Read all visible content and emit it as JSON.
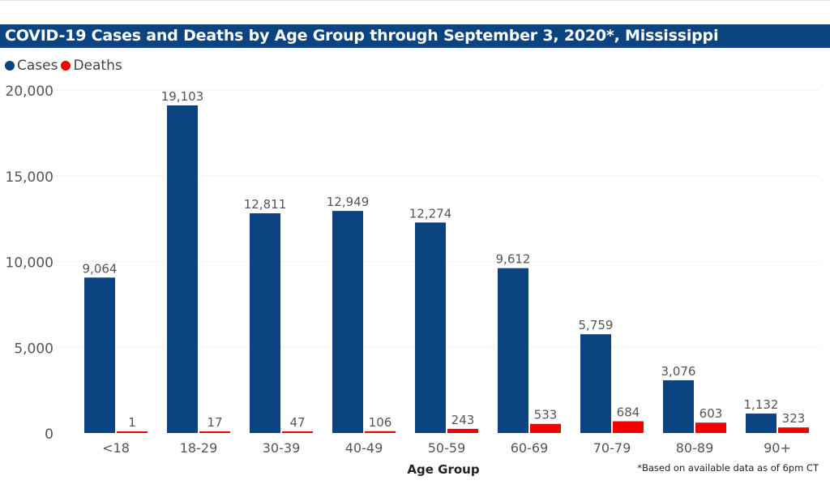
{
  "title": "COVID-19 Cases and Deaths by Age Group through September 3, 2020*, Mississippi",
  "footnote": "*Based on available data as of 6pm CT",
  "legend": [
    {
      "label": "Cases",
      "color": "#0b4480"
    },
    {
      "label": "Deaths",
      "color": "#f20000"
    }
  ],
  "chart_data": {
    "type": "bar",
    "title": "COVID-19 Cases and Deaths by Age Group through September 3, 2020*, Mississippi",
    "xlabel": "Age Group",
    "ylabel": "",
    "categories": [
      "<18",
      "18-29",
      "30-39",
      "40-49",
      "50-59",
      "60-69",
      "70-79",
      "80-89",
      "90+"
    ],
    "series": [
      {
        "name": "Cases",
        "color": "#0b4480",
        "values": [
          9064,
          19103,
          12811,
          12949,
          12274,
          9612,
          5759,
          3076,
          1132
        ],
        "labels": [
          "9,064",
          "19,103",
          "12,811",
          "12,949",
          "12,274",
          "9,612",
          "5,759",
          "3,076",
          "1,132"
        ]
      },
      {
        "name": "Deaths",
        "color": "#f20000",
        "values": [
          1,
          17,
          47,
          106,
          243,
          533,
          684,
          603,
          323
        ],
        "labels": [
          "1",
          "17",
          "47",
          "106",
          "243",
          "533",
          "684",
          "603",
          "323"
        ]
      }
    ],
    "ylim": [
      0,
      20000
    ],
    "yticks": [
      0,
      5000,
      10000,
      15000,
      20000
    ],
    "ytick_labels": [
      "0",
      "5,000",
      "10,000",
      "15,000",
      "20,000"
    ],
    "grid": true,
    "legend_position": "top-left"
  }
}
